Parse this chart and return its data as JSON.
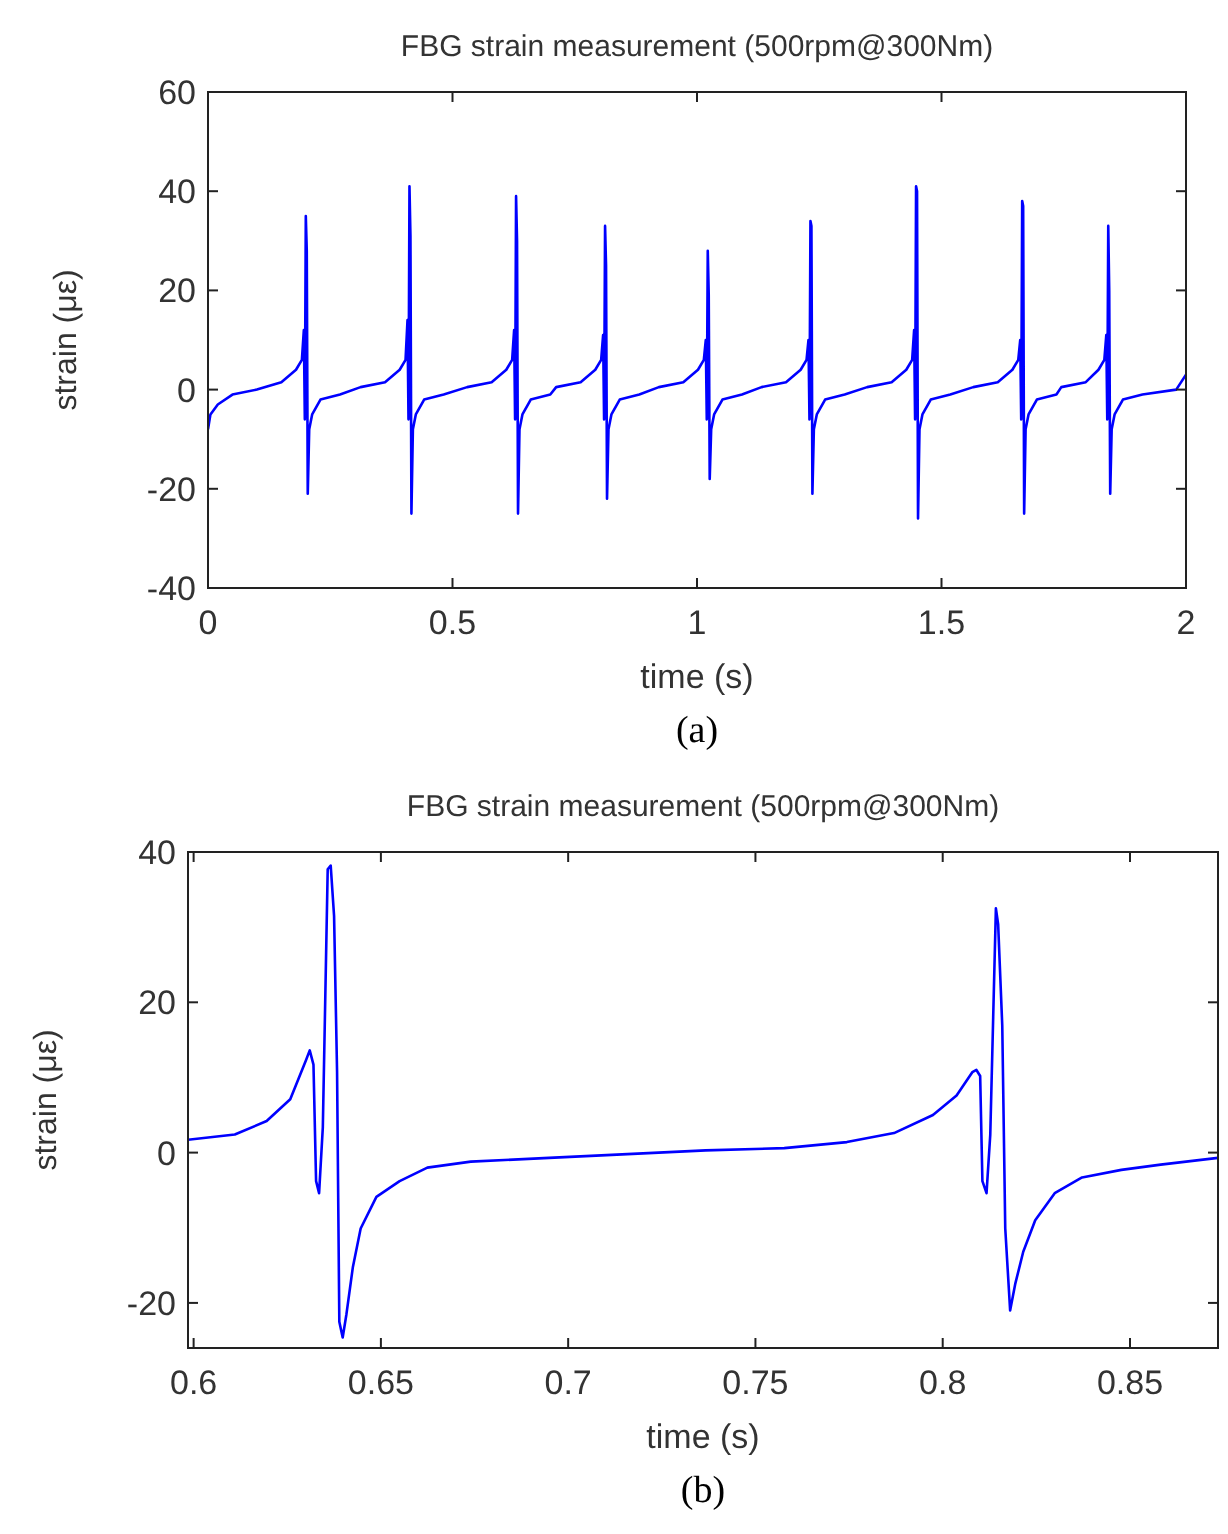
{
  "chart_data": [
    {
      "type": "line",
      "title": "FBG strain measurement (500rpm@300Nm)",
      "xlabel": "time (s)",
      "ylabel": "strain (με)",
      "annotations": [
        "(a)"
      ],
      "xlim": [
        0,
        2
      ],
      "ylim": [
        -40,
        60
      ],
      "xticks": [
        0,
        0.5,
        1,
        1.5,
        2
      ],
      "yticks": [
        -40,
        -20,
        0,
        20,
        40,
        60
      ],
      "grid": false,
      "marker": "none",
      "line_style": "solid",
      "series": [
        {
          "color": "#0000ff",
          "x": [
            0,
            0.005,
            0.02,
            0.05,
            0.1,
            0.15,
            0.18,
            0.192,
            0.196,
            0.198,
            0.2,
            0.202,
            0.204,
            0.207,
            0.213,
            0.23,
            0.27,
            0.312,
            0.362,
            0.392,
            0.404,
            0.408,
            0.41,
            0.412,
            0.414,
            0.416,
            0.419,
            0.425,
            0.442,
            0.482,
            0.53,
            0.58,
            0.61,
            0.622,
            0.626,
            0.628,
            0.63,
            0.632,
            0.634,
            0.637,
            0.643,
            0.66,
            0.7,
            0.712,
            0.762,
            0.792,
            0.804,
            0.808,
            0.81,
            0.812,
            0.814,
            0.816,
            0.819,
            0.825,
            0.842,
            0.882,
            0.922,
            0.972,
            1.002,
            1.014,
            1.018,
            1.02,
            1.022,
            1.024,
            1.026,
            1.029,
            1.035,
            1.052,
            1.092,
            1.132,
            1.182,
            1.212,
            1.224,
            1.228,
            1.23,
            1.232,
            1.234,
            1.236,
            1.239,
            1.245,
            1.262,
            1.302,
            1.348,
            1.398,
            1.428,
            1.44,
            1.444,
            1.446,
            1.448,
            1.45,
            1.452,
            1.455,
            1.461,
            1.478,
            1.518,
            1.565,
            1.615,
            1.645,
            1.657,
            1.661,
            1.663,
            1.665,
            1.667,
            1.669,
            1.672,
            1.678,
            1.695,
            1.735,
            1.745,
            1.795,
            1.821,
            1.833,
            1.837,
            1.839,
            1.841,
            1.843,
            1.845,
            1.848,
            1.854,
            1.871,
            1.911,
            1.98,
            2
          ],
          "values": [
            -8,
            -5,
            -3,
            -1,
            0,
            1.5,
            4,
            6,
            12,
            -6,
            35,
            28,
            -21,
            -8,
            -5,
            -2,
            -1,
            0.5,
            1.5,
            4,
            6,
            14,
            -6,
            41,
            31,
            -25,
            -8,
            -5,
            -2,
            -1,
            0.5,
            1.5,
            4,
            6,
            12,
            -6,
            39,
            30,
            -25,
            -8,
            -5,
            -2,
            -1,
            0.5,
            1.5,
            4,
            6,
            11,
            -6,
            33,
            25,
            -22,
            -8,
            -5,
            -2,
            -1,
            0.5,
            1.5,
            4,
            6,
            10,
            -6,
            28,
            19,
            -18,
            -8,
            -5,
            -2,
            -1,
            0.5,
            1.5,
            4,
            6,
            10,
            -6,
            34,
            33,
            -21,
            -8,
            -5,
            -2,
            -1,
            0.5,
            1.5,
            4,
            6,
            12,
            -6,
            41,
            40,
            -26,
            -8,
            -5,
            -2,
            -1,
            0.5,
            1.5,
            4,
            6,
            10,
            -6,
            38,
            37,
            -25,
            -8,
            -5,
            -2,
            -1,
            0.5,
            1.5,
            4,
            6,
            11,
            -6,
            33,
            20,
            -21,
            -8,
            -5,
            -2,
            -1,
            0,
            3
          ]
        }
      ]
    },
    {
      "type": "line",
      "title": "FBG strain measurement (500rpm@300Nm)",
      "xlabel": "time (s)",
      "ylabel": "strain (με)",
      "annotations": [
        "(b)"
      ],
      "xlim": [
        0.5985,
        0.8735
      ],
      "ylim": [
        -26,
        40
      ],
      "xticks": [
        0.6,
        0.65,
        0.7,
        0.75,
        0.8,
        0.85
      ],
      "yticks": [
        -20,
        0,
        20,
        40
      ],
      "grid": false,
      "marker": "none",
      "line_style": "solid",
      "series": [
        {
          "color": "#0000ff",
          "x": [
            0.5985,
            0.611,
            0.6195,
            0.6258,
            0.63,
            0.631,
            0.632,
            0.6327,
            0.6335,
            0.6345,
            0.6358,
            0.6366,
            0.6375,
            0.6383,
            0.6389,
            0.6398,
            0.6408,
            0.6425,
            0.6446,
            0.6488,
            0.655,
            0.6624,
            0.674,
            0.6949,
            0.7158,
            0.7367,
            0.7577,
            0.7744,
            0.787,
            0.7974,
            0.8037,
            0.8079,
            0.809,
            0.81,
            0.8106,
            0.8117,
            0.8127,
            0.8142,
            0.8148,
            0.8159,
            0.8167,
            0.818,
            0.8194,
            0.8215,
            0.8247,
            0.8299,
            0.8372,
            0.8477,
            0.8582,
            0.8735
          ],
          "values": [
            1.7,
            2.4,
            4.2,
            7.1,
            12.3,
            13.6,
            11.7,
            -3.8,
            -5.4,
            3.4,
            37.7,
            38.2,
            31.5,
            10.7,
            -22.5,
            -24.6,
            -21.5,
            -15.3,
            -10.1,
            -5.9,
            -3.8,
            -2,
            -1.2,
            -0.7,
            -0.2,
            0.3,
            0.6,
            1.4,
            2.6,
            5,
            7.6,
            10.7,
            11,
            10.2,
            -3.8,
            -5.4,
            2.4,
            32.5,
            30.4,
            16.9,
            -10.1,
            -21,
            -17.4,
            -13.2,
            -9,
            -5.4,
            -3.3,
            -2.3,
            -1.6,
            -0.7
          ]
        }
      ]
    }
  ]
}
